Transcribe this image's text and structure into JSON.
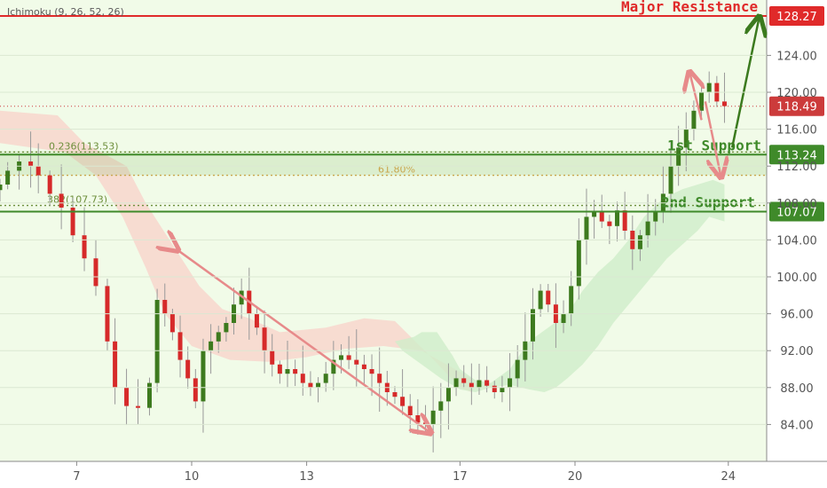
{
  "indicator_label": "Ichimoku (9, 26, 52, 26)",
  "colors": {
    "background": "#f1fbe8",
    "axis_panel": "#ffffff",
    "up_candle": "#3d7a1e",
    "down_candle": "#d62a2a",
    "wick": "#999999",
    "resistance": "#e02a2a",
    "support": "#3f8a2a",
    "fib": "#6e8f3c",
    "fib618": "#c9a64d",
    "current_price": "#cc3b3b",
    "red_cloud": "#f8d1c9",
    "green_cloud": "#cfeec9",
    "arrow_pink": "#e78a8a",
    "arrow_green": "#3b7a1e"
  },
  "chart_data": {
    "type": "candlestick",
    "ylim": [
      80,
      130
    ],
    "xlim": [
      5,
      25
    ],
    "y_ticks": [
      "84.00",
      "88.00",
      "92.00",
      "96.00",
      "100.00",
      "104.00",
      "108.00",
      "112.00",
      "116.00",
      "120.00",
      "124.00"
    ],
    "x_ticks": [
      {
        "x": 7,
        "label": "7"
      },
      {
        "x": 10,
        "label": "10"
      },
      {
        "x": 13,
        "label": "13"
      },
      {
        "x": 17,
        "label": "17"
      },
      {
        "x": 20,
        "label": "20"
      },
      {
        "x": 24,
        "label": "24"
      }
    ],
    "price_path": [
      [
        5.0,
        110.0
      ],
      [
        5.2,
        111.5
      ],
      [
        5.5,
        112.5
      ],
      [
        5.8,
        112.0
      ],
      [
        6.0,
        111.0
      ],
      [
        6.3,
        109.0
      ],
      [
        6.6,
        107.5
      ],
      [
        6.9,
        104.5
      ],
      [
        7.2,
        102.0
      ],
      [
        7.5,
        99.0
      ],
      [
        7.8,
        93.0
      ],
      [
        8.0,
        88.0
      ],
      [
        8.3,
        86.0
      ],
      [
        8.6,
        85.8
      ],
      [
        8.9,
        88.5
      ],
      [
        9.1,
        97.5
      ],
      [
        9.3,
        96.0
      ],
      [
        9.5,
        94.0
      ],
      [
        9.7,
        91.0
      ],
      [
        9.9,
        89.0
      ],
      [
        10.1,
        86.5
      ],
      [
        10.3,
        92.0
      ],
      [
        10.5,
        93.0
      ],
      [
        10.7,
        94.0
      ],
      [
        10.9,
        95.0
      ],
      [
        11.1,
        97.0
      ],
      [
        11.3,
        98.5
      ],
      [
        11.5,
        96.0
      ],
      [
        11.7,
        94.5
      ],
      [
        11.9,
        92.0
      ],
      [
        12.1,
        90.5
      ],
      [
        12.3,
        89.5
      ],
      [
        12.5,
        90.0
      ],
      [
        12.7,
        89.5
      ],
      [
        12.9,
        88.5
      ],
      [
        13.1,
        88.0
      ],
      [
        13.3,
        88.5
      ],
      [
        13.5,
        89.5
      ],
      [
        13.7,
        91.0
      ],
      [
        13.9,
        91.5
      ],
      [
        14.1,
        91.0
      ],
      [
        14.3,
        90.5
      ],
      [
        14.5,
        90.0
      ],
      [
        14.7,
        89.5
      ],
      [
        14.9,
        88.5
      ],
      [
        15.1,
        87.5
      ],
      [
        15.3,
        87.0
      ],
      [
        15.5,
        86.0
      ],
      [
        15.7,
        85.0
      ],
      [
        15.9,
        84.2
      ],
      [
        16.1,
        84.0
      ],
      [
        16.3,
        85.5
      ],
      [
        16.5,
        86.5
      ],
      [
        16.7,
        88.0
      ],
      [
        16.9,
        89.0
      ],
      [
        17.1,
        88.5
      ],
      [
        17.3,
        88.0
      ],
      [
        17.5,
        88.8
      ],
      [
        17.7,
        88.2
      ],
      [
        17.9,
        87.5
      ],
      [
        18.1,
        88.0
      ],
      [
        18.3,
        89.0
      ],
      [
        18.5,
        91.0
      ],
      [
        18.7,
        93.0
      ],
      [
        18.9,
        96.5
      ],
      [
        19.1,
        98.5
      ],
      [
        19.3,
        97.0
      ],
      [
        19.5,
        95.0
      ],
      [
        19.7,
        96.0
      ],
      [
        19.9,
        99.0
      ],
      [
        20.1,
        104.0
      ],
      [
        20.3,
        106.5
      ],
      [
        20.5,
        107.0
      ],
      [
        20.7,
        106.0
      ],
      [
        20.9,
        105.5
      ],
      [
        21.1,
        107.2
      ],
      [
        21.3,
        105.0
      ],
      [
        21.5,
        103.0
      ],
      [
        21.7,
        104.5
      ],
      [
        21.9,
        106.0
      ],
      [
        22.1,
        107.0
      ],
      [
        22.3,
        109.0
      ],
      [
        22.5,
        112.0
      ],
      [
        22.7,
        114.0
      ],
      [
        22.9,
        116.0
      ],
      [
        23.1,
        118.0
      ],
      [
        23.3,
        120.0
      ],
      [
        23.5,
        121.0
      ],
      [
        23.7,
        119.0
      ],
      [
        23.9,
        118.5
      ]
    ],
    "red_cloud": [
      [
        5.0,
        118.0
      ],
      [
        6.5,
        117.5
      ],
      [
        7.2,
        114.5
      ],
      [
        8.3,
        112.0
      ],
      [
        8.8,
        108.0
      ],
      [
        9.5,
        103.5
      ],
      [
        10.2,
        99.0
      ],
      [
        10.8,
        96.5
      ],
      [
        11.5,
        95.5
      ],
      [
        12.3,
        94.0
      ],
      [
        13.5,
        94.5
      ],
      [
        14.5,
        95.5
      ],
      [
        15.3,
        95.2
      ],
      [
        16.2,
        91.5
      ],
      [
        17.0,
        88.0
      ],
      [
        17.3,
        87.5
      ],
      [
        17.3,
        89.0
      ],
      [
        16.0,
        92.0
      ],
      [
        15.0,
        92.5
      ],
      [
        14.0,
        92.2
      ],
      [
        13.0,
        91.3
      ],
      [
        12.0,
        90.8
      ],
      [
        11.0,
        91.0
      ],
      [
        10.0,
        92.5
      ],
      [
        9.3,
        96.0
      ],
      [
        8.8,
        101.0
      ],
      [
        8.2,
        106.5
      ],
      [
        7.5,
        111.0
      ],
      [
        6.7,
        113.5
      ],
      [
        5.0,
        114.5
      ]
    ],
    "green_cloud": [
      [
        15.3,
        93.0
      ],
      [
        15.8,
        93.5
      ],
      [
        16.0,
        94.0
      ],
      [
        16.4,
        94.0
      ],
      [
        16.8,
        91.5
      ],
      [
        17.0,
        90.0
      ],
      [
        17.4,
        88.8
      ],
      [
        17.8,
        88.5
      ],
      [
        18.3,
        90.0
      ],
      [
        18.8,
        93.0
      ],
      [
        19.3,
        94.5
      ],
      [
        19.8,
        96.0
      ],
      [
        20.2,
        98.5
      ],
      [
        20.6,
        100.5
      ],
      [
        21.0,
        102.0
      ],
      [
        21.4,
        104.0
      ],
      [
        21.8,
        106.5
      ],
      [
        22.3,
        108.5
      ],
      [
        22.8,
        109.5
      ],
      [
        23.2,
        110.0
      ],
      [
        23.6,
        110.5
      ],
      [
        23.9,
        110.0
      ],
      [
        23.9,
        106.0
      ],
      [
        23.5,
        106.5
      ],
      [
        23.2,
        105.0
      ],
      [
        22.8,
        103.5
      ],
      [
        22.4,
        102.0
      ],
      [
        22.0,
        100.0
      ],
      [
        21.5,
        97.5
      ],
      [
        21.0,
        95.0
      ],
      [
        20.6,
        92.5
      ],
      [
        20.2,
        90.5
      ],
      [
        19.8,
        89.0
      ],
      [
        19.5,
        88.0
      ],
      [
        19.2,
        87.5
      ],
      [
        18.8,
        87.8
      ],
      [
        18.3,
        88.3
      ],
      [
        17.8,
        88.0
      ],
      [
        17.4,
        87.5
      ],
      [
        17.0,
        87.8
      ],
      [
        16.5,
        89.0
      ],
      [
        16.0,
        90.5
      ],
      [
        15.5,
        92.0
      ]
    ],
    "levels": [
      {
        "label": "Major Resistance",
        "value": 128.27,
        "price_label": "128.27"
      },
      {
        "label": "1st Support",
        "value": 113.24,
        "price_label": "113.24"
      },
      {
        "label": "2nd Support",
        "value": 107.07,
        "price_label": "107.07"
      }
    ],
    "current_price": {
      "value": 118.49,
      "label": "118.49"
    },
    "fib_lines": [
      {
        "label": "0.236(113.53)",
        "value": 113.53
      },
      {
        "label": "61.80%",
        "value": 111.0
      },
      {
        "label": "382(107.73)",
        "value": 107.73
      }
    ],
    "support_zone": [
      111.0,
      113.6
    ],
    "arrows": [
      {
        "from": [
          9.6,
          103.0
        ],
        "to": [
          16.2,
          83.2
        ],
        "style": "double"
      },
      {
        "from": [
          23.3,
          117.0
        ],
        "to": [
          23.0,
          122.0
        ],
        "style": "single"
      },
      {
        "from": [
          23.4,
          119.0
        ],
        "to": [
          23.8,
          111.0
        ],
        "style": "single"
      },
      {
        "from": [
          24.1,
          114.0
        ],
        "to": [
          24.8,
          128.0
        ],
        "style": "single"
      }
    ]
  }
}
